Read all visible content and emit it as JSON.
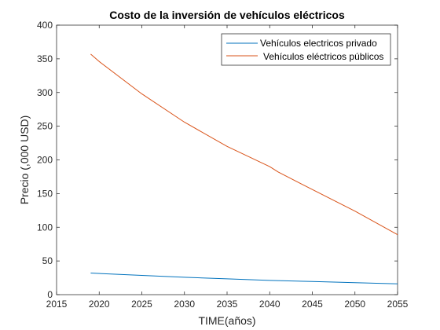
{
  "chart_data": {
    "type": "line",
    "title": "Costo de la inversión de vehículos eléctricos",
    "xlabel": "TIME(años)",
    "ylabel": "Precio (,000 USD)",
    "xlim": [
      2015,
      2055
    ],
    "ylim": [
      0,
      400
    ],
    "xticks": [
      2015,
      2020,
      2025,
      2030,
      2035,
      2040,
      2045,
      2050,
      2055
    ],
    "yticks": [
      0,
      50,
      100,
      150,
      200,
      250,
      300,
      350,
      400
    ],
    "grid": false,
    "legend_position": "top-right",
    "series": [
      {
        "name": "Vehículos electricos privado",
        "color": "#0072BD",
        "x": [
          2019,
          2025,
          2030,
          2035,
          2040,
          2045,
          2050,
          2055
        ],
        "y": [
          32,
          28.5,
          25.8,
          23.4,
          21.2,
          19.5,
          17.8,
          16
        ]
      },
      {
        "name": "Vehículos eléctricos públicos",
        "color": "#D95319",
        "x": [
          2019,
          2020,
          2025,
          2030,
          2035,
          2040,
          2041,
          2045,
          2050,
          2055
        ],
        "y": [
          357,
          346,
          298,
          256,
          220,
          190,
          182,
          156,
          124,
          89
        ]
      }
    ]
  }
}
